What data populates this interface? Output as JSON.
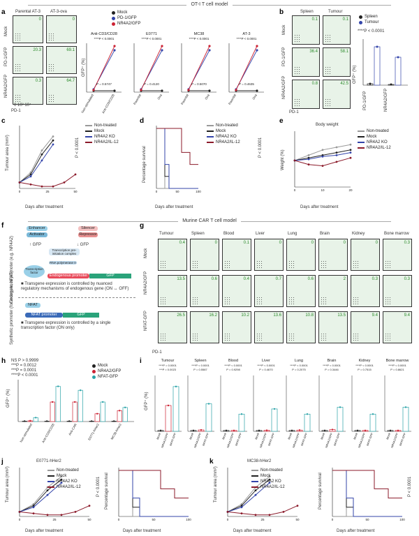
{
  "banners": {
    "top": "OT-I T cell model",
    "middle": "Murine CAR T cell model"
  },
  "panel_letters": [
    "a",
    "b",
    "c",
    "d",
    "e",
    "f",
    "g",
    "h",
    "i",
    "j",
    "k"
  ],
  "panel_a": {
    "col_labels": [
      "Parental AT-3",
      "AT-3-ova"
    ],
    "row_labels": [
      "Mock",
      "PD-1/GFP",
      "NR4A2/GFP"
    ],
    "x_axis": "PD-1",
    "ticks": "0  10³  10⁴",
    "gates": [
      [
        "0",
        "0"
      ],
      [
        "20.3",
        "69.1"
      ],
      [
        "0.3",
        "64.7"
      ]
    ],
    "legend": [
      "Mock",
      "PD-1/GFP",
      "NR4A2/GFP"
    ],
    "subcharts": [
      {
        "title": "Anti-CD3/CD28",
        "p_top": "****P < 0.0001",
        "p_bottom": "P = 0.5747",
        "xticks": [
          "Non-stimulated",
          "Anti-CD3/CD28"
        ]
      },
      {
        "title": "E0771",
        "p_top": "****P < 0.0001",
        "p_bottom": "P = 0.4120",
        "xticks": [
          "Parental",
          "Ova"
        ]
      },
      {
        "title": "MC38",
        "p_top": "****P < 0.0001",
        "p_bottom": "P = 0.5070",
        "xticks": [
          "Parental",
          "Ova"
        ]
      },
      {
        "title": "AT-3",
        "p_top": "****P < 0.0001",
        "p_bottom": "P = 0.4635",
        "xticks": [
          "Parental",
          "Ova"
        ]
      }
    ],
    "ylabel": "GFP⁺ (%)"
  },
  "panel_b": {
    "col_labels": [
      "Spleen",
      "Tumour"
    ],
    "row_labels": [
      "Mock",
      "PD-1/GFP",
      "NR4A2/GFP"
    ],
    "gates": [
      [
        "0.1",
        "0.1"
      ],
      [
        "36.4",
        "58.1"
      ],
      [
        "0.8",
        "42.5"
      ]
    ],
    "legend": [
      "Spleen",
      "Tumour"
    ],
    "p_text": "****P < 0.0001",
    "ylabel": "GFP⁺ (%)",
    "xticks": [
      "PD-1/GFP",
      "NR4A2/GFP"
    ],
    "x_axis": "PD-1",
    "y_axis": "GFP"
  },
  "panel_c": {
    "ylabel": "Tumour area (mm²)",
    "xlabel": "Days after treatment",
    "legend": [
      "Non-treated",
      "Mock",
      "NR4A2 KO",
      "NR4A2/IL-12"
    ],
    "p_text": "P < 0.0001"
  },
  "panel_d": {
    "ylabel": "Percentage survival",
    "xlabel": "Days after treatment",
    "legend": [
      "Non-treated",
      "Mock",
      "NR4A2 KO",
      "NR4A2/IL-12"
    ],
    "p_text": "P < 0.0001"
  },
  "panel_e": {
    "title": "Body weight",
    "ylabel": "Weight (%)",
    "xlabel": "Days after treatment",
    "legend": [
      "Non-treated",
      "Mock",
      "NR4A2 KO",
      "NR4A2/IL-12"
    ]
  },
  "panel_f": {
    "endogenous_label": "Endogenous promoter (e.g. NR4A2)",
    "synthetic_label": "Synthetic promoter (for example, NFAT)",
    "enhancer": "Enhancer",
    "activator": "Activator",
    "silencer": "Silencer",
    "repressor": "Repressor",
    "up_gfp": "↑ GFP",
    "down_gfp": "↓ GFP",
    "tf": "Transcription factor",
    "rna_pol": "RNA polymerase II",
    "complex": "Transcription pre-initiation complex",
    "endo_promoter": "Endogenous promoter",
    "gfp": "GFP",
    "bullet1": "Transgene expression is controlled by nuanced regulatory mechanisms of endogenous gene (ON ↔ OFF)",
    "nfat": "NFAT",
    "nfat_promoter": "NFAT promoter",
    "bullet2": "Transgene expression is controlled by a single transcription factor (ON only)"
  },
  "panel_g": {
    "stats": [
      "NS P > 0.9999",
      "***P = 0.0012",
      "***P = 0.0001",
      "****P < 0.0001"
    ],
    "legend": [
      "Mock",
      "NR4A2/GFP",
      "NFAT-GFP"
    ],
    "ylabel": "GFP⁺ (%)",
    "xticks": [
      "Non-stimulated",
      "Anti-CD3/CD28",
      "Anti-CAR",
      "E0771-hHer2",
      "MC38-hHer2"
    ]
  },
  "panel_h": {
    "tissues": [
      "Tumour",
      "Spleen",
      "Blood",
      "Liver",
      "Lung",
      "Brain",
      "Kidney",
      "Bone marrow"
    ],
    "rows": [
      "Mock",
      "NR4A2/GFP",
      "NFAT-GFP"
    ],
    "gates": [
      [
        "0.4",
        "0",
        "0.1",
        "0",
        "0",
        "0",
        "0",
        "0.3"
      ],
      [
        "13.5",
        "0.6",
        "0.4",
        "0.7",
        "0.6",
        "2",
        "0.3",
        "0.3"
      ],
      [
        "26.5",
        "16.2",
        "10.2",
        "13.6",
        "10.8",
        "13.5",
        "9.4",
        "9.4"
      ]
    ],
    "x_axis": "PD-1",
    "y_axis": "GFP"
  },
  "panel_i": {
    "titles": [
      "Tumour",
      "Spleen",
      "Blood",
      "Liver",
      "Lung",
      "Brain",
      "Kidney",
      "Bone marrow"
    ],
    "p_top": [
      "****P = 0.0001",
      "****P < 0.0001",
      "****P < 0.0001",
      "****P < 0.0001",
      "****P < 0.0001",
      "****P < 0.0001",
      "****P < 0.0001",
      "****P < 0.0001"
    ],
    "p_bottom": [
      "***P = 0.0023",
      "P = 0.5587",
      "P = 0.9298",
      "P = 0.4670",
      "P = 0.2075",
      "P = 0.3446",
      "P = 0.7515",
      "P = 0.8621"
    ],
    "xticks": [
      "Mock",
      "NR4A2/GFP",
      "NFAT-GFP"
    ],
    "ylabel": "GFP⁺ (%)"
  },
  "panel_j": {
    "title": "E0771-hHer2",
    "ylabel": "Tumour area (mm²)",
    "xlabel": "Days after treatment",
    "surv_ylabel": "Percentage survival",
    "legend": [
      "Non-treated",
      "Mock",
      "NR4A2 KO",
      "NR4A2/IL-12"
    ],
    "p_text": "P < 0.0001"
  },
  "panel_k": {
    "title": "MC38-hHer2",
    "ylabel": "Tumour area (mm²)",
    "xlabel": "Days after treatment",
    "surv_ylabel": "Percentage survival",
    "legend": [
      "Non-treated",
      "Mock",
      "NR4A2 KO",
      "NR4A2/IL-12"
    ],
    "p_text": "P < 0.0001"
  },
  "colors": {
    "mock": "#222222",
    "pd1": "#3344aa",
    "nr4a2": "#cc2233",
    "il12": "#8b1a2a",
    "nfat": "#2aa3a8",
    "nontreated": "#999999",
    "green": "#2a8a2a"
  },
  "chart_data": [
    {
      "type": "line",
      "panel": "c",
      "x": [
        0,
        10,
        20,
        30,
        40,
        50
      ],
      "series": [
        {
          "name": "Non-treated",
          "values": [
            15,
            40,
            95,
            130,
            null,
            null
          ]
        },
        {
          "name": "Mock",
          "values": [
            15,
            35,
            85,
            120,
            null,
            null
          ]
        },
        {
          "name": "NR4A2 KO",
          "values": [
            15,
            30,
            70,
            110,
            null,
            null
          ]
        },
        {
          "name": "NR4A2/IL-12",
          "values": [
            15,
            10,
            5,
            5,
            15,
            35
          ]
        }
      ],
      "ylim": [
        0,
        150
      ]
    },
    {
      "type": "line",
      "panel": "d",
      "x": [
        0,
        10,
        20,
        30,
        40,
        50,
        60,
        70,
        80,
        90,
        100
      ],
      "series": [
        {
          "name": "Non-treated",
          "values": [
            100,
            100,
            0,
            0,
            0,
            0,
            0,
            0,
            0,
            0,
            0
          ]
        },
        {
          "name": "Mock",
          "values": [
            100,
            100,
            20,
            0,
            0,
            0,
            0,
            0,
            0,
            0,
            0
          ]
        },
        {
          "name": "NR4A2 KO",
          "values": [
            100,
            100,
            40,
            0,
            0,
            0,
            0,
            0,
            0,
            0,
            0
          ]
        },
        {
          "name": "NR4A2/IL-12",
          "values": [
            100,
            100,
            100,
            100,
            100,
            100,
            60,
            60,
            40,
            40,
            40
          ]
        }
      ],
      "ylim": [
        0,
        100
      ]
    },
    {
      "type": "line",
      "panel": "e",
      "x": [
        0,
        5,
        10,
        15,
        20
      ],
      "series": [
        {
          "name": "Non-treated",
          "values": [
            100,
            104,
            108,
            110,
            112
          ]
        },
        {
          "name": "Mock",
          "values": [
            100,
            102,
            104,
            106,
            108
          ]
        },
        {
          "name": "NR4A2 KO",
          "values": [
            100,
            101,
            103,
            104,
            106
          ]
        },
        {
          "name": "NR4A2/IL-12",
          "values": [
            100,
            97,
            96,
            99,
            102
          ]
        }
      ],
      "ylim": [
        80,
        120
      ]
    },
    {
      "type": "bar",
      "panel": "g",
      "categories": [
        "Non-stimulated",
        "Anti-CD3/CD28",
        "Anti-CAR",
        "E0771-hHer2",
        "MC38-hHer2"
      ],
      "series": [
        {
          "name": "Mock",
          "values": [
            0.5,
            0.5,
            0.5,
            0.5,
            0.5
          ]
        },
        {
          "name": "NR4A2/GFP",
          "values": [
            1,
            25,
            25,
            10,
            14
          ]
        },
        {
          "name": "NFAT-GFP",
          "values": [
            5,
            45,
            40,
            25,
            18
          ]
        }
      ],
      "ylim": [
        0,
        50
      ]
    },
    {
      "type": "bar",
      "panel": "i",
      "categories": [
        "Tumour",
        "Spleen",
        "Blood",
        "Liver",
        "Lung",
        "Brain",
        "Kidney",
        "Bone marrow"
      ],
      "series": [
        {
          "name": "Mock",
          "values": [
            0.5,
            0.5,
            0.5,
            0.5,
            0.5,
            0.5,
            0.5,
            0.5
          ]
        },
        {
          "name": "NR4A2/GFP",
          "values": [
            15,
            0.8,
            0.5,
            0.6,
            0.7,
            1,
            0.5,
            0.5
          ]
        },
        {
          "name": "NFAT-GFP",
          "values": [
            26,
            16,
            10,
            13,
            10,
            14,
            10,
            14
          ]
        }
      ],
      "ylim": [
        0,
        30
      ]
    }
  ]
}
